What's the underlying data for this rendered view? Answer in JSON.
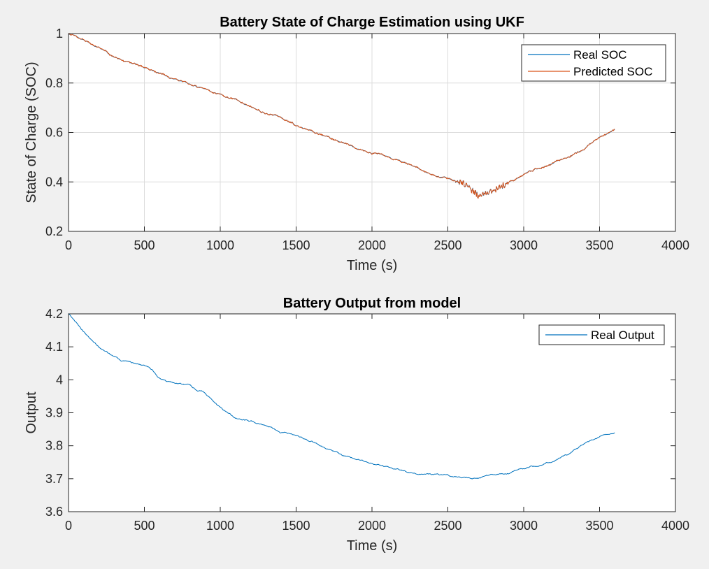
{
  "figure": {
    "background": "#f0f0f0"
  },
  "chart_data": [
    {
      "type": "line",
      "title": "Battery State of Charge Estimation using UKF",
      "xlabel": "Time (s)",
      "ylabel": "State of Charge (SOC)",
      "xlim": [
        0,
        4000
      ],
      "ylim": [
        0.2,
        1
      ],
      "xticks": [
        "0",
        "500",
        "1000",
        "1500",
        "2000",
        "2500",
        "3000",
        "3500",
        "4000"
      ],
      "yticks": [
        "0.2",
        "0.4",
        "0.6",
        "0.8",
        "1"
      ],
      "grid": true,
      "legend": "top-right",
      "series": [
        {
          "name": "Real SOC",
          "color": "#0072bd",
          "x": [
            0,
            100,
            200,
            300,
            400,
            500,
            600,
            700,
            800,
            900,
            1000,
            1100,
            1200,
            1300,
            1400,
            1500,
            1600,
            1700,
            1800,
            1900,
            2000,
            2100,
            2200,
            2300,
            2400,
            2500,
            2600,
            2650,
            2700,
            2750,
            2800,
            2900,
            3000,
            3100,
            3200,
            3300,
            3400,
            3500,
            3600
          ],
          "y": [
            1.0,
            0.975,
            0.945,
            0.905,
            0.885,
            0.865,
            0.84,
            0.815,
            0.795,
            0.775,
            0.755,
            0.735,
            0.705,
            0.68,
            0.66,
            0.625,
            0.605,
            0.585,
            0.56,
            0.54,
            0.52,
            0.5,
            0.48,
            0.455,
            0.425,
            0.415,
            0.395,
            0.375,
            0.345,
            0.355,
            0.365,
            0.395,
            0.43,
            0.455,
            0.48,
            0.505,
            0.535,
            0.58,
            0.61
          ]
        },
        {
          "name": "Predicted SOC",
          "color": "#d95319",
          "x": [
            0,
            100,
            200,
            300,
            400,
            500,
            600,
            700,
            800,
            900,
            1000,
            1100,
            1200,
            1300,
            1400,
            1500,
            1600,
            1700,
            1800,
            1900,
            2000,
            2100,
            2200,
            2300,
            2400,
            2500,
            2600,
            2650,
            2700,
            2750,
            2800,
            2900,
            3000,
            3100,
            3200,
            3300,
            3400,
            3500,
            3600
          ],
          "y": [
            1.0,
            0.975,
            0.945,
            0.905,
            0.885,
            0.865,
            0.84,
            0.815,
            0.795,
            0.775,
            0.755,
            0.735,
            0.705,
            0.68,
            0.66,
            0.625,
            0.605,
            0.585,
            0.56,
            0.54,
            0.52,
            0.5,
            0.48,
            0.455,
            0.425,
            0.415,
            0.395,
            0.375,
            0.345,
            0.355,
            0.365,
            0.395,
            0.43,
            0.455,
            0.48,
            0.505,
            0.535,
            0.58,
            0.61
          ]
        }
      ]
    },
    {
      "type": "line",
      "title": "Battery Output from model",
      "xlabel": "Time (s)",
      "ylabel": "Output",
      "xlim": [
        0,
        4000
      ],
      "ylim": [
        3.6,
        4.2
      ],
      "xticks": [
        "0",
        "500",
        "1000",
        "1500",
        "2000",
        "2500",
        "3000",
        "3500",
        "4000"
      ],
      "yticks": [
        "3.6",
        "3.7",
        "3.8",
        "3.9",
        "4",
        "4.1",
        "4.2"
      ],
      "grid": false,
      "legend": "top-right",
      "series": [
        {
          "name": "Real Output",
          "color": "#0072bd",
          "x": [
            0,
            50,
            100,
            150,
            200,
            250,
            300,
            350,
            400,
            450,
            500,
            550,
            600,
            650,
            700,
            750,
            800,
            850,
            900,
            950,
            1000,
            1050,
            1100,
            1200,
            1300,
            1400,
            1500,
            1600,
            1700,
            1800,
            1900,
            2000,
            2100,
            2200,
            2300,
            2400,
            2500,
            2600,
            2700,
            2750,
            2800,
            2900,
            3000,
            3100,
            3200,
            3300,
            3400,
            3500,
            3600
          ],
          "y": [
            4.2,
            4.17,
            4.145,
            4.12,
            4.1,
            4.085,
            4.07,
            4.06,
            4.055,
            4.05,
            4.045,
            4.03,
            4.005,
            3.995,
            3.99,
            3.985,
            3.98,
            3.97,
            3.96,
            3.935,
            3.915,
            3.9,
            3.885,
            3.875,
            3.86,
            3.84,
            3.83,
            3.815,
            3.79,
            3.77,
            3.755,
            3.745,
            3.735,
            3.725,
            3.715,
            3.712,
            3.71,
            3.705,
            3.7,
            3.71,
            3.713,
            3.718,
            3.73,
            3.74,
            3.755,
            3.775,
            3.805,
            3.83,
            3.84
          ]
        }
      ]
    }
  ]
}
